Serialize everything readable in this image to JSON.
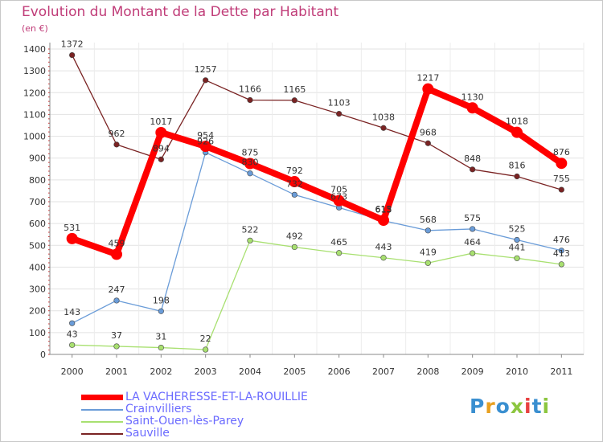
{
  "header": {
    "title": "Evolution du Montant de la Dette par Habitant",
    "unit": "(en €)"
  },
  "logo": {
    "text": "Proxiti",
    "colors": [
      "#3a8fd0",
      "#e8a020",
      "#3a8fd0",
      "#8cc63f",
      "#e84040",
      "#3a8fd0",
      "#8cc63f"
    ]
  },
  "chart_data": {
    "type": "line",
    "title": "Evolution du Montant de la Dette par Habitant",
    "ylabel": "(en €)",
    "xlabel": "",
    "ylim": [
      0,
      1400
    ],
    "yticks": [
      0,
      100,
      200,
      300,
      400,
      500,
      600,
      700,
      800,
      900,
      1000,
      1100,
      1200,
      1300,
      1400
    ],
    "categories": [
      "2000",
      "2001",
      "2002",
      "2003",
      "2004",
      "2005",
      "2006",
      "2007",
      "2008",
      "2009",
      "2010",
      "2011"
    ],
    "grid": true,
    "series": [
      {
        "name": "Sauville",
        "color": "#7a2323",
        "values": [
          1372,
          962,
          894,
          1257,
          1166,
          1165,
          1103,
          1038,
          968,
          848,
          816,
          755
        ]
      },
      {
        "name": "Crainvilliers",
        "color": "#6a9cd8",
        "values": [
          143,
          247,
          198,
          926,
          830,
          732,
          673,
          613,
          568,
          575,
          525,
          476
        ]
      },
      {
        "name": "Saint-Ouen-lès-Parey",
        "color": "#a8e070",
        "values": [
          43,
          37,
          31,
          22,
          522,
          492,
          465,
          443,
          419,
          464,
          441,
          413
        ]
      },
      {
        "name": "LA VACHERESSE-ET-LA-ROUILLIE",
        "color": "#ff0000",
        "values": [
          531,
          459,
          1017,
          954,
          875,
          792,
          705,
          615,
          1217,
          1130,
          1018,
          876
        ]
      }
    ],
    "legend": [
      "LA VACHERESSE-ET-LA-ROUILLIE",
      "Crainvilliers",
      "Saint-Ouen-lès-Parey",
      "Sauville"
    ]
  }
}
